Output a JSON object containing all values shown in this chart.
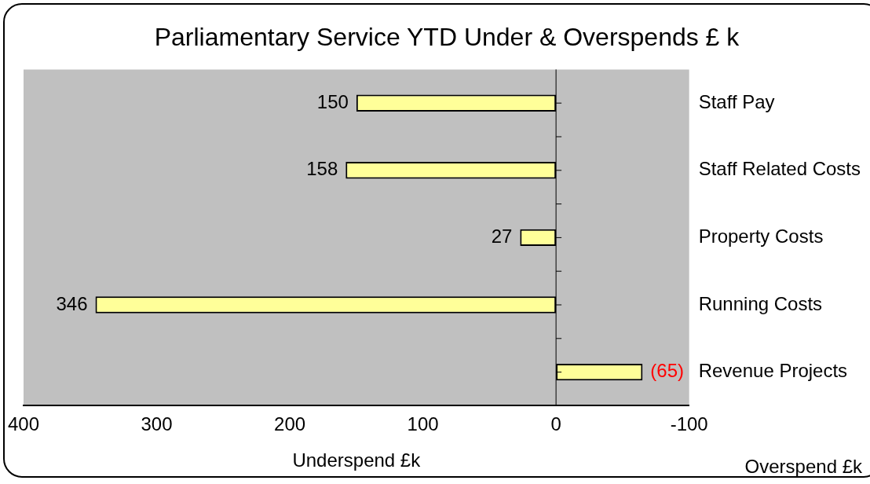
{
  "chart_data": {
    "type": "bar",
    "orientation": "horizontal",
    "title": "Parliamentary Service YTD Under & Overspends £ k",
    "xlabel": "Underspend £k",
    "annotations": [
      "Overspend £k"
    ],
    "categories": [
      "Staff Pay",
      "Staff Related Costs",
      "Property Costs",
      "Running Costs",
      "Revenue Projects"
    ],
    "values": [
      150,
      158,
      27,
      346,
      -65
    ],
    "value_labels": [
      "150",
      "158",
      "27",
      "346",
      "(65)"
    ],
    "color": "#ffff99",
    "xlim": [
      400,
      -100
    ],
    "xticks": [
      400,
      300,
      200,
      100,
      0,
      -100
    ],
    "ref_lines": [
      {
        "axis": "x",
        "value": 0,
        "color": "#000000"
      }
    ],
    "grid": false,
    "legend": false
  }
}
